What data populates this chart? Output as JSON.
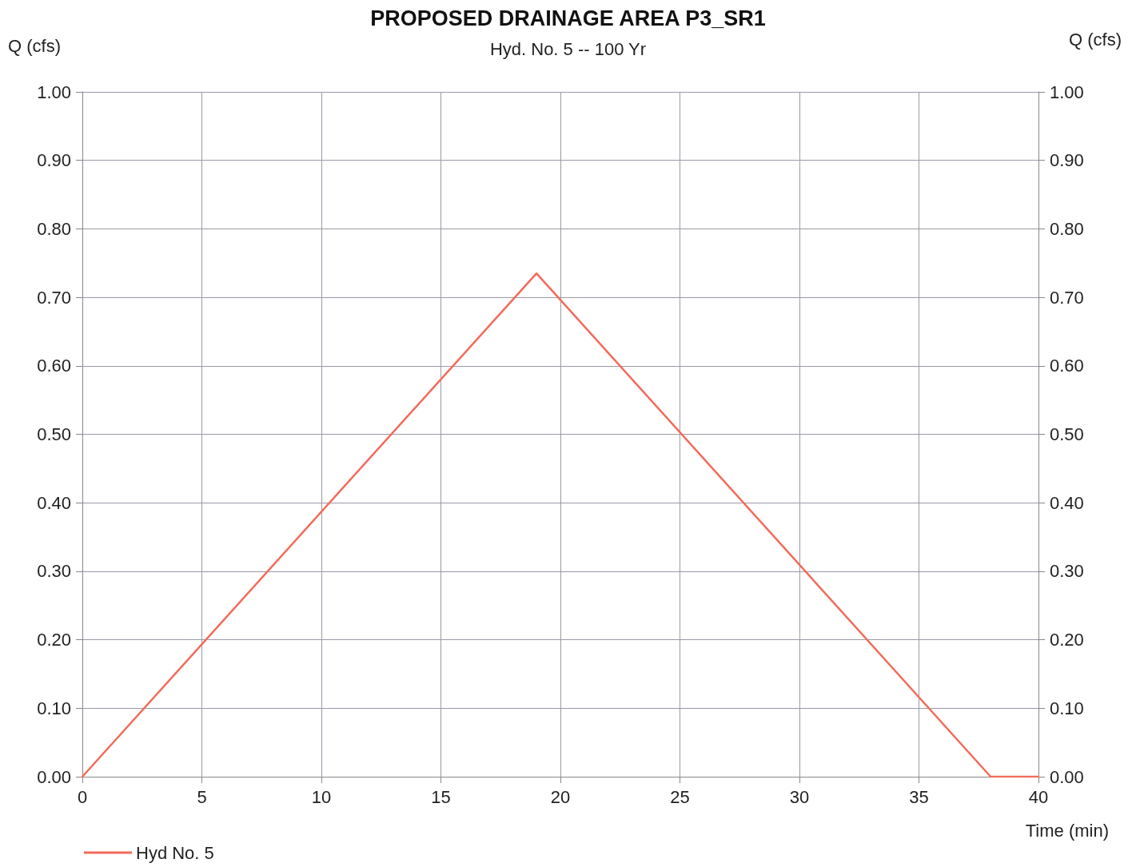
{
  "chart_data": {
    "type": "line",
    "title": "PROPOSED DRAINAGE AREA P3_SR1",
    "subtitle": "Hyd. No. 5 -- 100 Yr",
    "xlabel": "Time (min)",
    "ylabel": "Q (cfs)",
    "y2label": "Q (cfs)",
    "x": [
      0,
      19,
      38,
      40
    ],
    "series": [
      {
        "name": "Hyd No. 5",
        "color": "#f26b5b",
        "values": [
          0,
          0.735,
          0,
          0
        ]
      }
    ],
    "xlim": [
      0,
      40
    ],
    "xticks": [
      0,
      5,
      10,
      15,
      20,
      25,
      30,
      35,
      40
    ],
    "ylim": [
      0,
      1
    ],
    "yticks": [
      {
        "value": 0,
        "label": "0.00"
      },
      {
        "value": 0.1,
        "label": "0.10"
      },
      {
        "value": 0.2,
        "label": "0.20"
      },
      {
        "value": 0.3,
        "label": "0.30"
      },
      {
        "value": 0.4,
        "label": "0.40"
      },
      {
        "value": 0.5,
        "label": "0.50"
      },
      {
        "value": 0.6,
        "label": "0.60"
      },
      {
        "value": 0.7,
        "label": "0.70"
      },
      {
        "value": 0.8,
        "label": "0.80"
      },
      {
        "value": 0.9,
        "label": "0.90"
      },
      {
        "value": 1,
        "label": "1.00"
      }
    ],
    "y2lim": [
      0,
      1
    ],
    "y2ticks": [
      {
        "value": 0,
        "label": "0.00"
      },
      {
        "value": 0.1,
        "label": "0.10"
      },
      {
        "value": 0.2,
        "label": "0.20"
      },
      {
        "value": 0.3,
        "label": "0.30"
      },
      {
        "value": 0.4,
        "label": "0.40"
      },
      {
        "value": 0.5,
        "label": "0.50"
      },
      {
        "value": 0.6,
        "label": "0.60"
      },
      {
        "value": 0.7,
        "label": "0.70"
      },
      {
        "value": 0.8,
        "label": "0.80"
      },
      {
        "value": 0.9,
        "label": "0.90"
      },
      {
        "value": 1,
        "label": "1.00"
      }
    ],
    "grid": true,
    "legend": "bottom left",
    "marker": "none",
    "line_style": "solid"
  }
}
